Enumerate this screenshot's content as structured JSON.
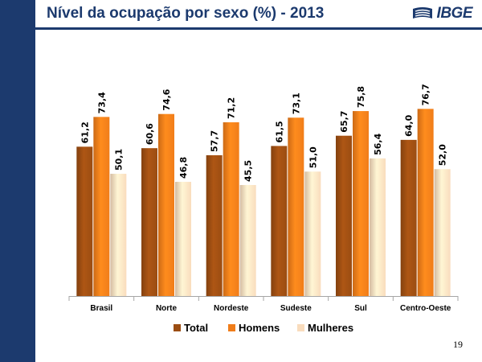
{
  "slide": {
    "title": "Nível da ocupação por sexo (%) - 2013",
    "logo_text": "IBGE",
    "page_number": "19"
  },
  "colors": {
    "sidebar": "#1c3a6e",
    "title": "#1c3a6e"
  },
  "chart_data": {
    "type": "bar",
    "title": "",
    "xlabel": "",
    "ylabel": "",
    "ylim": [
      0,
      90
    ],
    "grid": false,
    "legend_position": "bottom",
    "categories": [
      "Brasil",
      "Norte",
      "Nordeste",
      "Sudeste",
      "Sul",
      "Centro-Oeste"
    ],
    "series": [
      {
        "name": "Total",
        "color": "#9b4d12",
        "values": [
          61.2,
          60.6,
          57.7,
          61.5,
          65.7,
          64.0
        ],
        "labels": [
          "61,2",
          "60,6",
          "57,7",
          "61,5",
          "65,7",
          "64,0"
        ]
      },
      {
        "name": "Homens",
        "color": "#f07d1a",
        "values": [
          73.4,
          74.6,
          71.2,
          73.1,
          75.8,
          76.7
        ],
        "labels": [
          "73,4",
          "74,6",
          "71,2",
          "73,1",
          "75,8",
          "76,7"
        ]
      },
      {
        "name": "Mulheres",
        "color": "#f9dcbd",
        "values": [
          50.1,
          46.8,
          45.5,
          51.0,
          56.4,
          52.0
        ],
        "labels": [
          "50,1",
          "46,8",
          "45,5",
          "51,0",
          "56,4",
          "52,0"
        ]
      }
    ]
  }
}
